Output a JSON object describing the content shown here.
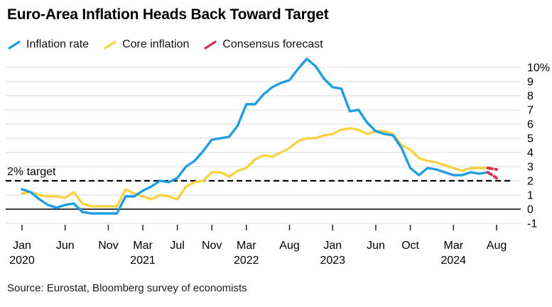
{
  "header": {
    "title": "Euro-Area Inflation Heads Back Toward Target"
  },
  "legend": {
    "items": [
      {
        "label": "Inflation rate",
        "color": "#1e9de3"
      },
      {
        "label": "Core inflation",
        "color": "#f8d243"
      },
      {
        "label": "Consensus forecast",
        "color": "#d6324e"
      }
    ]
  },
  "chart_data": {
    "type": "line",
    "title": "Euro-Area Inflation Heads Back Toward Target",
    "unit": "%",
    "x_start": "2020-01",
    "x_end": "2024-08",
    "target_label": "2% target",
    "target_value": 2,
    "grid": "horizontal",
    "y_axis": {
      "position": "right",
      "min": -1,
      "max": 10,
      "tick_values": [
        10,
        9,
        8,
        7,
        6,
        5,
        4,
        3,
        2,
        1,
        0,
        -1
      ],
      "tick_labels": [
        "10%",
        "9",
        "8",
        "7",
        "6",
        "5",
        "4",
        "3",
        "2",
        "1",
        "0",
        "-1"
      ]
    },
    "x_axis": {
      "ticks": [
        {
          "month_index": 0,
          "label": "Jan",
          "year": "2020"
        },
        {
          "month_index": 5,
          "label": "Jun",
          "year": ""
        },
        {
          "month_index": 10,
          "label": "Nov",
          "year": ""
        },
        {
          "month_index": 14,
          "label": "Mar",
          "year": "2021"
        },
        {
          "month_index": 18,
          "label": "Jul",
          "year": ""
        },
        {
          "month_index": 22,
          "label": "Nov",
          "year": ""
        },
        {
          "month_index": 26,
          "label": "Mar",
          "year": "2022"
        },
        {
          "month_index": 31,
          "label": "Aug",
          "year": ""
        },
        {
          "month_index": 36,
          "label": "Jan",
          "year": "2023"
        },
        {
          "month_index": 41,
          "label": "Jun",
          "year": ""
        },
        {
          "month_index": 45,
          "label": "Oct",
          "year": ""
        },
        {
          "month_index": 50,
          "label": "Mar",
          "year": "2024"
        },
        {
          "month_index": 55,
          "label": "Aug",
          "year": ""
        }
      ]
    },
    "series": [
      {
        "name": "Core inflation",
        "color": "#f8d243",
        "style": "solid",
        "start_month_index": 0,
        "values": [
          1.1,
          1.2,
          1.0,
          0.9,
          0.9,
          0.8,
          1.2,
          0.4,
          0.2,
          0.2,
          0.2,
          0.2,
          1.4,
          1.1,
          0.9,
          0.7,
          1.0,
          0.9,
          0.7,
          1.6,
          1.9,
          2.0,
          2.6,
          2.6,
          2.3,
          2.7,
          2.9,
          3.5,
          3.8,
          3.7,
          4.0,
          4.3,
          4.8,
          5.0,
          5.0,
          5.2,
          5.3,
          5.6,
          5.7,
          5.6,
          5.3,
          5.5,
          5.5,
          5.3,
          4.5,
          4.2,
          3.6,
          3.4,
          3.3,
          3.1,
          2.9,
          2.7,
          2.9,
          2.9,
          2.9
        ]
      },
      {
        "name": "Inflation rate",
        "color": "#1e9de3",
        "style": "solid",
        "start_month_index": 0,
        "values": [
          1.4,
          1.2,
          0.7,
          0.3,
          0.1,
          0.3,
          0.4,
          -0.2,
          -0.3,
          -0.3,
          -0.3,
          -0.3,
          0.9,
          0.9,
          1.3,
          1.6,
          2.0,
          1.9,
          2.2,
          3.0,
          3.4,
          4.1,
          4.9,
          5.0,
          5.1,
          5.9,
          7.4,
          7.4,
          8.1,
          8.6,
          8.9,
          9.1,
          9.9,
          10.6,
          10.1,
          9.2,
          8.6,
          8.5,
          6.9,
          7.0,
          6.1,
          5.5,
          5.3,
          5.2,
          4.3,
          2.9,
          2.4,
          2.9,
          2.8,
          2.6,
          2.4,
          2.4,
          2.6,
          2.5,
          2.6
        ]
      },
      {
        "name": "Consensus forecast (core inflation)",
        "color": "#d6324e",
        "style": "dashed",
        "start_month_index": 54,
        "values": [
          2.9,
          2.8
        ]
      },
      {
        "name": "Consensus forecast (inflation rate)",
        "color": "#d6324e",
        "style": "dashed",
        "start_month_index": 54,
        "values": [
          2.6,
          2.2
        ]
      }
    ]
  },
  "footer": {
    "source": "Source: Eurostat, Bloomberg survey of economists"
  }
}
